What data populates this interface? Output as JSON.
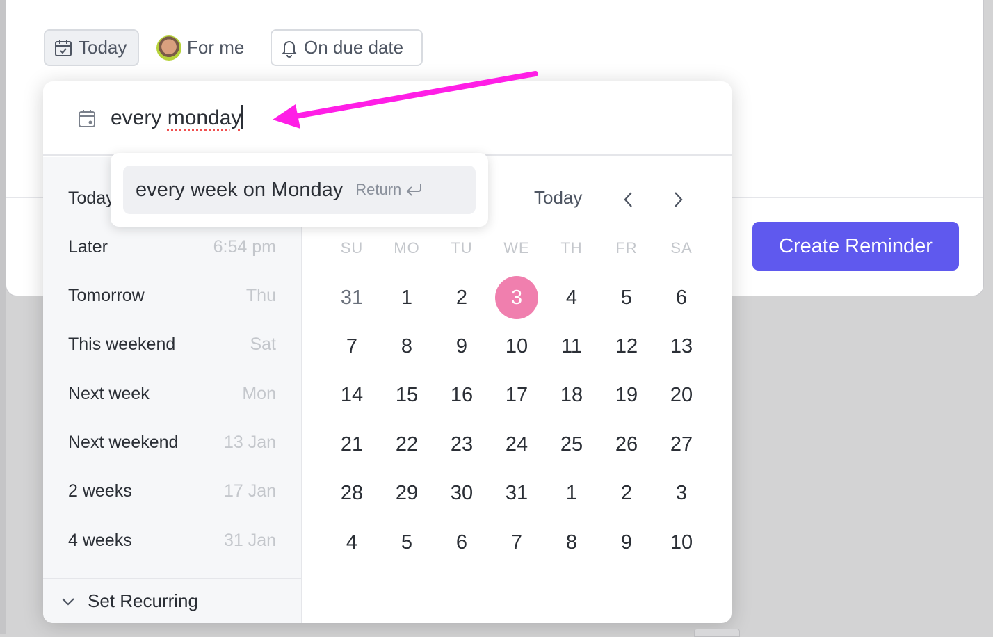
{
  "chips": {
    "today": "Today",
    "for_me": "For me",
    "on_due_date": "On due date"
  },
  "create_button": "Create Reminder",
  "input": {
    "value_prefix": "every ",
    "value_word": "monday"
  },
  "suggestion": {
    "label": "every week on Monday",
    "key": "Return"
  },
  "quick_options": [
    {
      "label": "Today",
      "value": ""
    },
    {
      "label": "Later",
      "value": "6:54 pm"
    },
    {
      "label": "Tomorrow",
      "value": "Thu"
    },
    {
      "label": "This weekend",
      "value": "Sat"
    },
    {
      "label": "Next week",
      "value": "Mon"
    },
    {
      "label": "Next weekend",
      "value": "13 Jan"
    },
    {
      "label": "2 weeks",
      "value": "17 Jan"
    },
    {
      "label": "4 weeks",
      "value": "31 Jan"
    }
  ],
  "set_recurring": "Set Recurring",
  "calendar": {
    "today_label": "Today",
    "weekdays": [
      "SU",
      "MO",
      "TU",
      "WE",
      "TH",
      "FR",
      "SA"
    ],
    "selected": "3",
    "accent": "#f07fae",
    "weeks": [
      [
        "31",
        "1",
        "2",
        "3",
        "4",
        "5",
        "6"
      ],
      [
        "7",
        "8",
        "9",
        "10",
        "11",
        "12",
        "13"
      ],
      [
        "14",
        "15",
        "16",
        "17",
        "18",
        "19",
        "20"
      ],
      [
        "21",
        "22",
        "23",
        "24",
        "25",
        "26",
        "27"
      ],
      [
        "28",
        "29",
        "30",
        "31",
        "1",
        "2",
        "3"
      ],
      [
        "4",
        "5",
        "6",
        "7",
        "8",
        "9",
        "10"
      ]
    ]
  },
  "colors": {
    "primary": "#5f59ee",
    "annotation_arrow": "#ff1ee6"
  }
}
